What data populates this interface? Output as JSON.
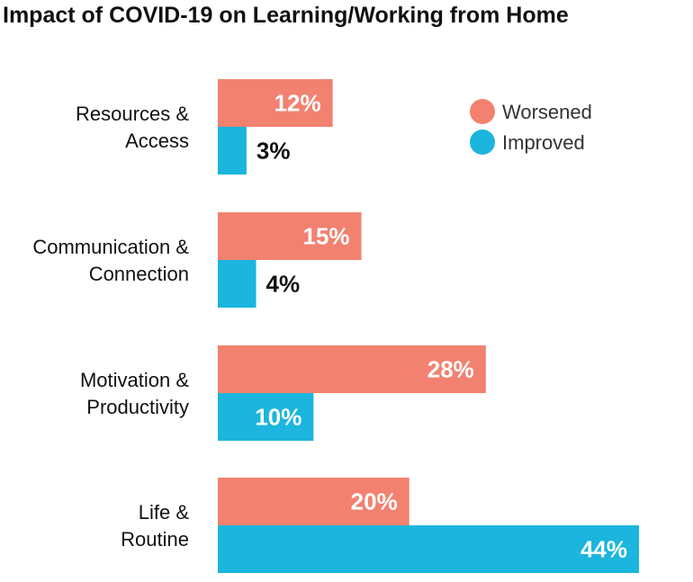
{
  "chart_data": {
    "type": "bar",
    "orientation": "horizontal",
    "title": "Impact of COVID-19 on Learning/Working from Home",
    "xlabel": "",
    "ylabel": "",
    "xlim": [
      0,
      44
    ],
    "grid": false,
    "legend_position": "top-right",
    "value_suffix": "%",
    "categories": [
      [
        "Resources &",
        "Access"
      ],
      [
        "Communication &",
        "Connection"
      ],
      [
        "Motivation &",
        "Productivity"
      ],
      [
        "Life &",
        "Routine"
      ]
    ],
    "series": [
      {
        "name": "Worsened",
        "color": "#F28170",
        "values": [
          12,
          15,
          28,
          20
        ]
      },
      {
        "name": "Improved",
        "color": "#1BB5DD",
        "values": [
          3,
          4,
          10,
          44
        ]
      }
    ]
  }
}
